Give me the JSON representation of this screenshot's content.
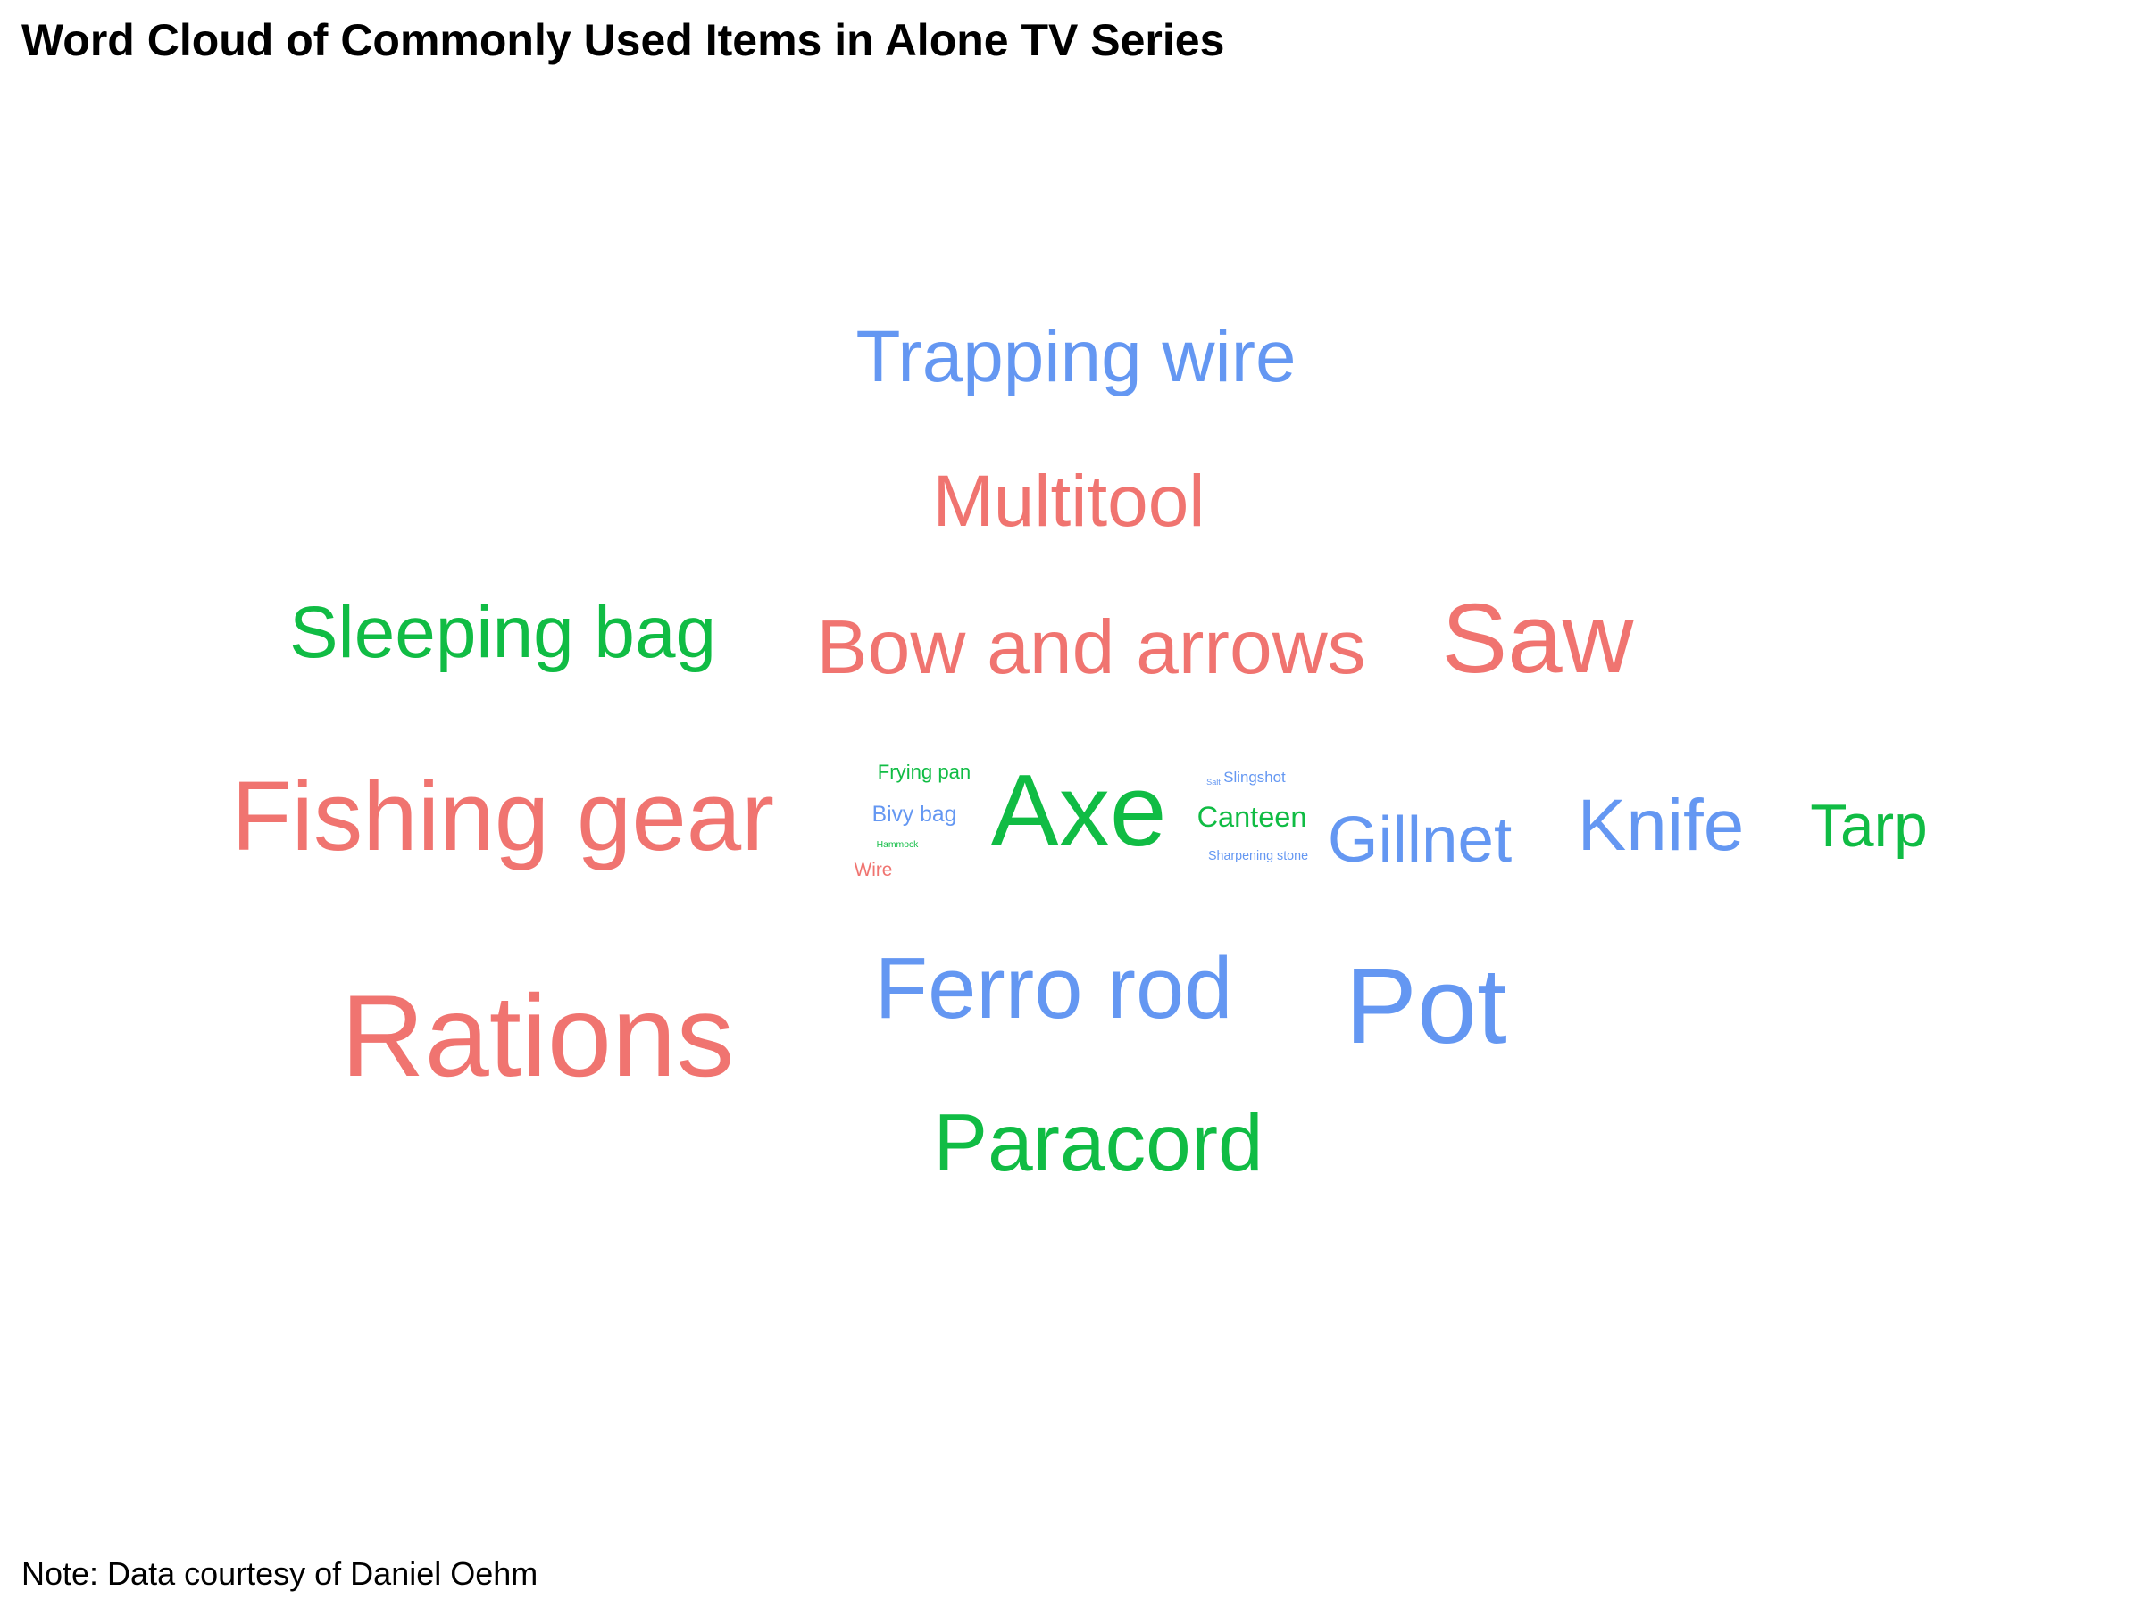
{
  "title": "Word Cloud of Commonly Used Items in Alone TV Series",
  "caption": "Note: Data courtesy of Daniel Oehm",
  "colors": {
    "red": "#F07470",
    "green": "#10BC44",
    "blue": "#6497F2"
  },
  "chart_data": {
    "type": "wordcloud",
    "title": "Word Cloud of Commonly Used Items in Alone TV Series",
    "words": [
      {
        "text": "Rations",
        "weight": 1.0,
        "color": "red"
      },
      {
        "text": "Pot",
        "weight": 0.93,
        "color": "blue"
      },
      {
        "text": "Axe",
        "weight": 0.88,
        "color": "green"
      },
      {
        "text": "Fishing gear",
        "weight": 0.85,
        "color": "red"
      },
      {
        "text": "Saw",
        "weight": 0.85,
        "color": "red"
      },
      {
        "text": "Ferro rod",
        "weight": 0.75,
        "color": "blue"
      },
      {
        "text": "Paracord",
        "weight": 0.7,
        "color": "green"
      },
      {
        "text": "Bow and arrows",
        "weight": 0.66,
        "color": "red"
      },
      {
        "text": "Trapping wire",
        "weight": 0.63,
        "color": "blue"
      },
      {
        "text": "Multitool",
        "weight": 0.63,
        "color": "red"
      },
      {
        "text": "Sleeping bag",
        "weight": 0.63,
        "color": "green"
      },
      {
        "text": "Knife",
        "weight": 0.63,
        "color": "blue"
      },
      {
        "text": "Gillnet",
        "weight": 0.56,
        "color": "blue"
      },
      {
        "text": "Tarp",
        "weight": 0.52,
        "color": "green"
      },
      {
        "text": "Canteen",
        "weight": 0.25,
        "color": "green"
      },
      {
        "text": "Bivy bag",
        "weight": 0.19,
        "color": "blue"
      },
      {
        "text": "Frying pan",
        "weight": 0.17,
        "color": "green"
      },
      {
        "text": "Wire",
        "weight": 0.16,
        "color": "red"
      },
      {
        "text": "Slingshot",
        "weight": 0.13,
        "color": "blue"
      },
      {
        "text": "Sharpening stone",
        "weight": 0.11,
        "color": "blue"
      },
      {
        "text": "Hammock",
        "weight": 0.08,
        "color": "green"
      },
      {
        "text": "Salt",
        "weight": 0.07,
        "color": "blue"
      }
    ]
  }
}
